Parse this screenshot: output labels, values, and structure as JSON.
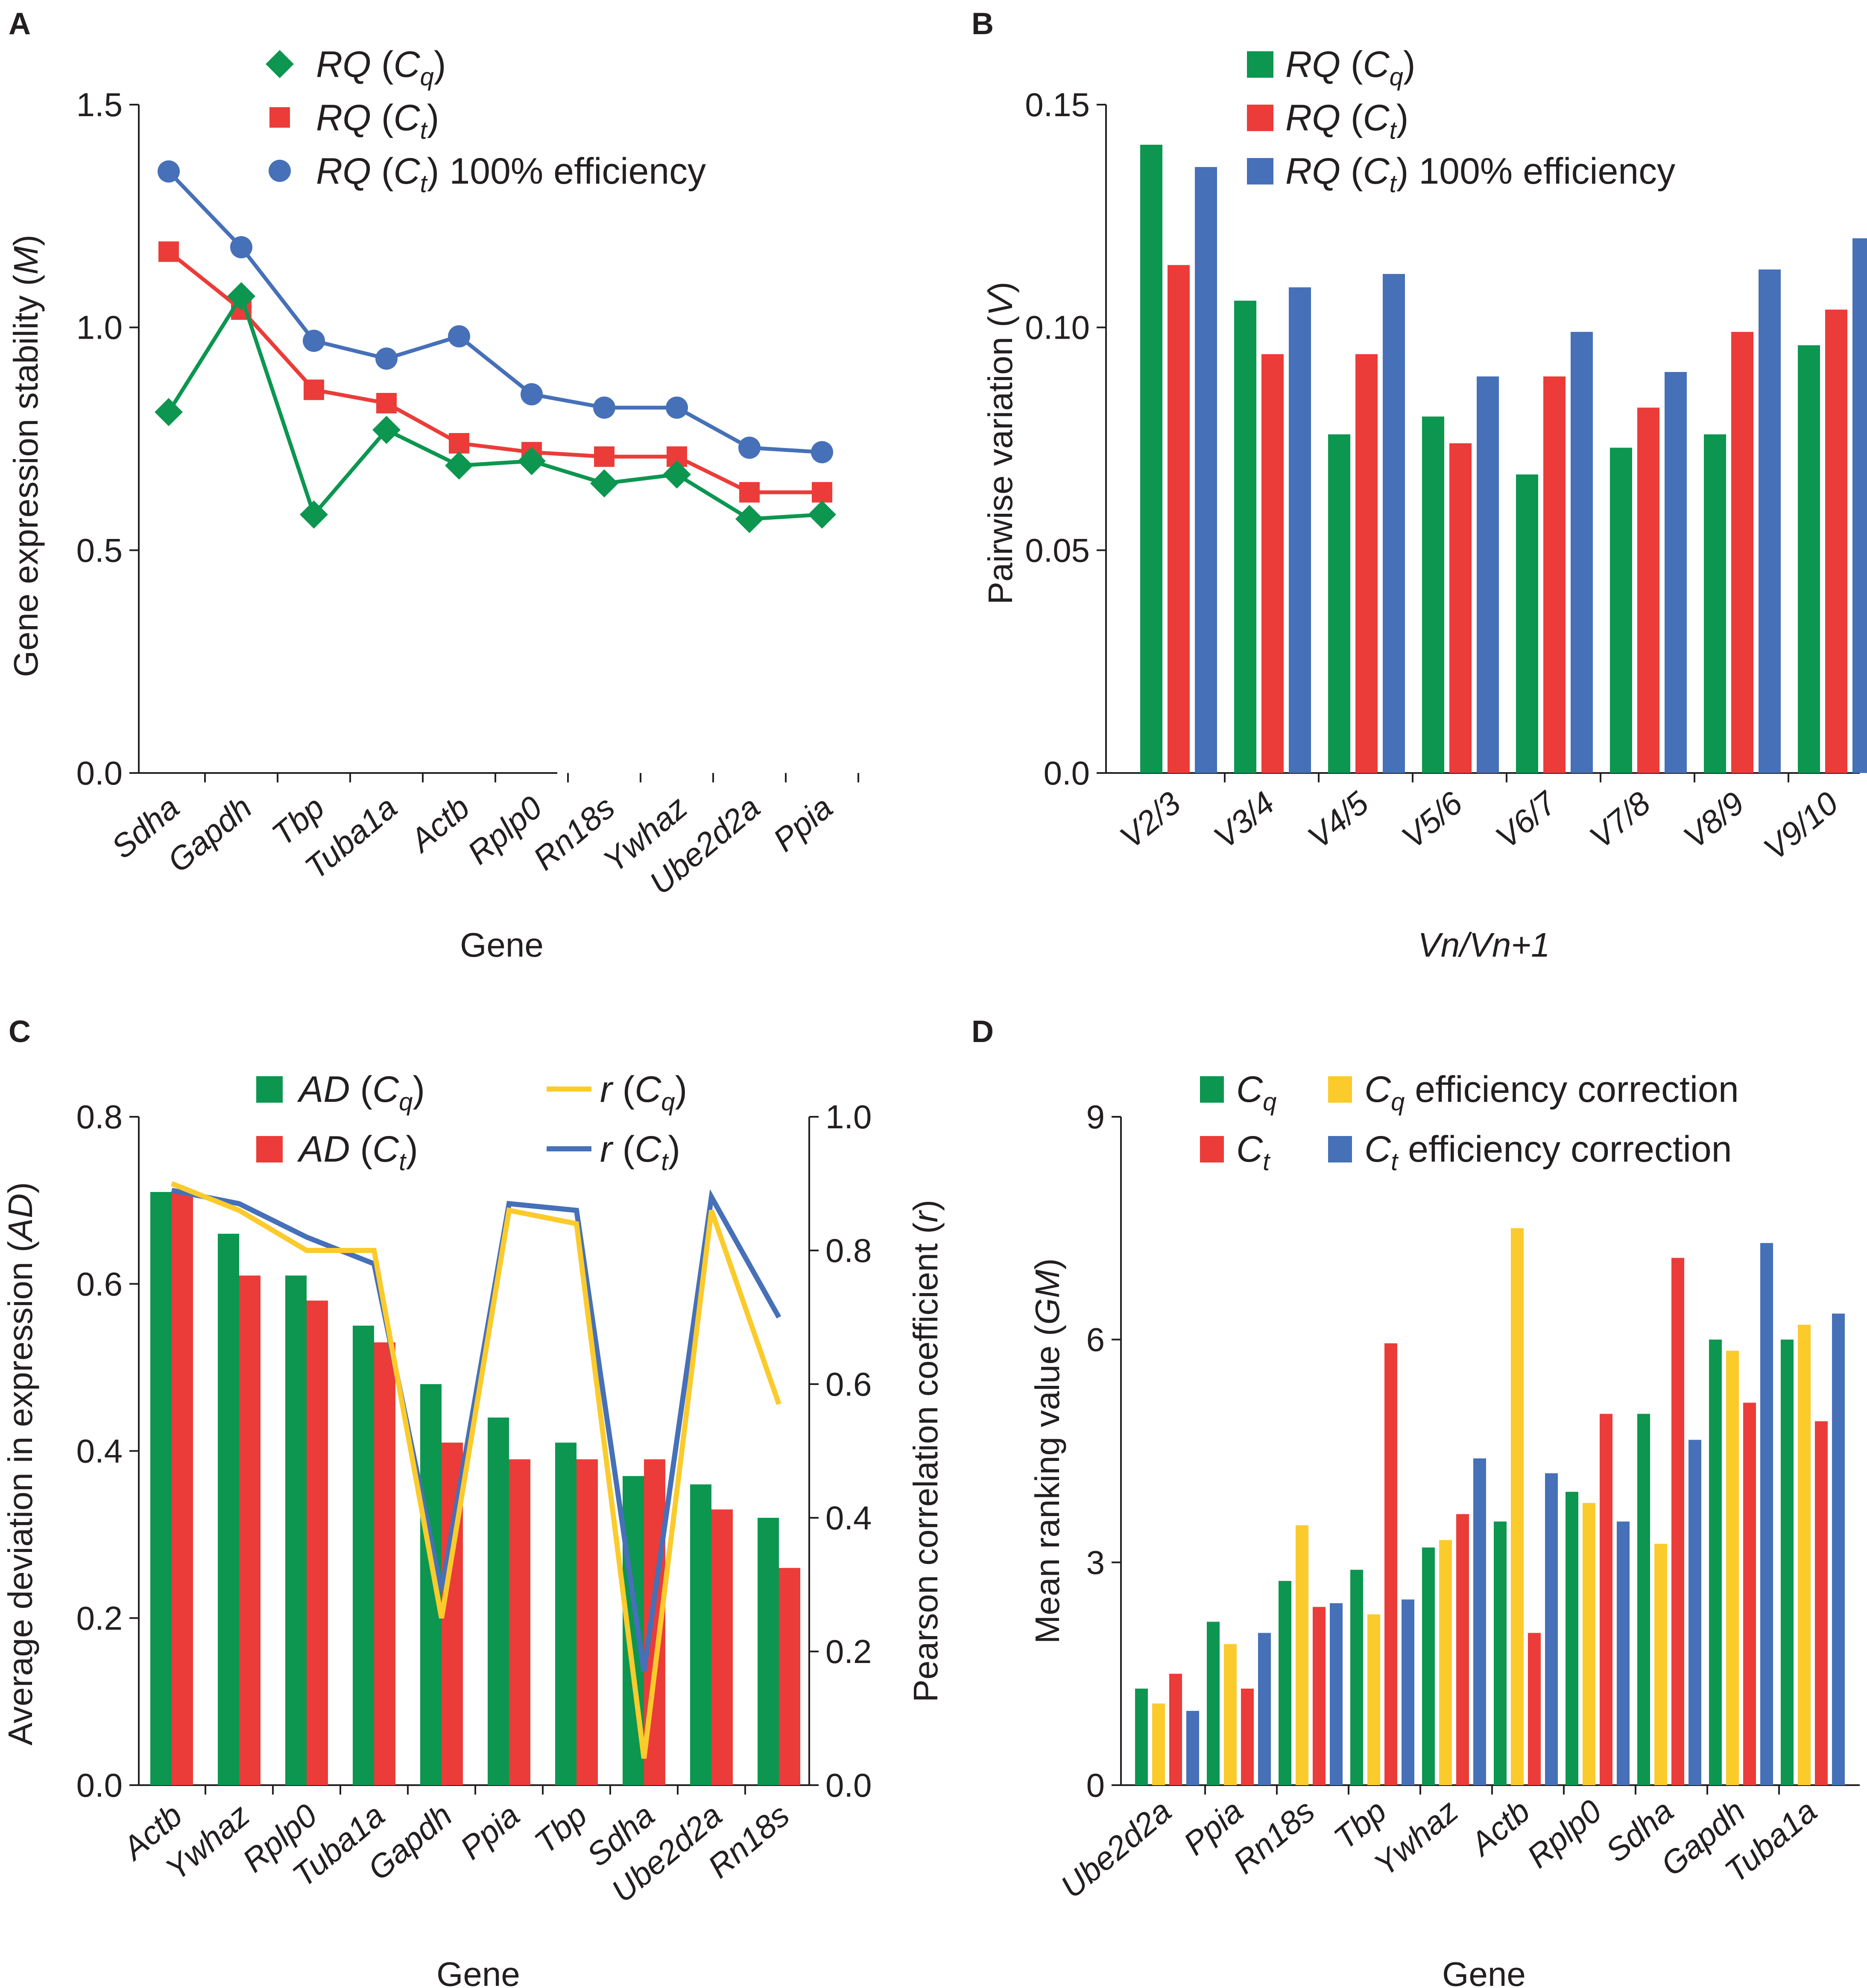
{
  "colors": {
    "green": "#0c9650",
    "red": "#eb3c39",
    "blue": "#4670b8",
    "yellow": "#fbcb2c",
    "axis": "#231f20"
  },
  "panel_labels": [
    "A",
    "B",
    "C",
    "D"
  ],
  "chart_data": [
    {
      "panel": "A",
      "type": "line",
      "xlabel": "Gene",
      "ylabel": "Gene expression stability (M)",
      "ylabel_main": "Gene expression stability (",
      "ylabel_var": "M",
      "ylabel_close": ")",
      "ylim": [
        0,
        1.5
      ],
      "yticks": [
        "0.0",
        "0.5",
        "1.0",
        "1.5"
      ],
      "categories": [
        "Sdha",
        "Gapdh",
        "Tbp",
        "Tuba1a",
        "Actb",
        "Rplp0",
        "Rn18s",
        "Ywhaz",
        "Ube2d2a",
        "Ppia"
      ],
      "legend": [
        {
          "prefix": "RQ",
          "open": " (",
          "var": "C",
          "sub": "q",
          "close": ")",
          "suffix": ""
        },
        {
          "prefix": "RQ",
          "open": " (",
          "var": "C",
          "sub": "t",
          "close": ")",
          "suffix": ""
        },
        {
          "prefix": "RQ",
          "open": " (",
          "var": "C",
          "sub": "t",
          "close": ")",
          "suffix": " 100% efficiency"
        }
      ],
      "series": [
        {
          "name": "RQ (Cq)",
          "color": "green",
          "marker": "diamond",
          "values": [
            0.81,
            1.07,
            0.58,
            0.77,
            0.69,
            0.7,
            0.65,
            0.67,
            0.57,
            0.58
          ]
        },
        {
          "name": "RQ (Ct)",
          "color": "red",
          "marker": "square",
          "values": [
            1.17,
            1.04,
            0.86,
            0.83,
            0.74,
            0.72,
            0.71,
            0.71,
            0.63,
            0.63
          ]
        },
        {
          "name": "RQ (Ct) 100% efficiency",
          "color": "blue",
          "marker": "circle",
          "values": [
            1.35,
            1.18,
            0.97,
            0.93,
            0.98,
            0.85,
            0.82,
            0.82,
            0.73,
            0.72
          ]
        }
      ]
    },
    {
      "panel": "B",
      "type": "bar",
      "xlabel": "Vn/Vn+1",
      "ylabel": "Pairwise variation (V)",
      "ylabel_main": "Pairwise variation (",
      "ylabel_var": "V",
      "ylabel_close": ")",
      "ylim": [
        0,
        0.15
      ],
      "yticks": [
        "0.0",
        "0.05",
        "0.10",
        "0.15"
      ],
      "categories": [
        "V2/3",
        "V3/4",
        "V4/5",
        "V5/6",
        "V6/7",
        "V7/8",
        "V8/9",
        "V9/10"
      ],
      "legend": [
        {
          "prefix": "RQ",
          "open": " (",
          "var": "C",
          "sub": "q",
          "close": ")",
          "suffix": ""
        },
        {
          "prefix": "RQ",
          "open": " (",
          "var": "C",
          "sub": "t",
          "close": ")",
          "suffix": ""
        },
        {
          "prefix": "RQ",
          "open": " (",
          "var": "C",
          "sub": "t",
          "close": ")",
          "suffix": " 100% efficiency"
        }
      ],
      "series": [
        {
          "name": "RQ (Cq)",
          "color": "green",
          "values": [
            0.141,
            0.106,
            0.076,
            0.08,
            0.067,
            0.073,
            0.076,
            0.096
          ]
        },
        {
          "name": "RQ (Ct)",
          "color": "red",
          "values": [
            0.114,
            0.094,
            0.094,
            0.074,
            0.089,
            0.082,
            0.099,
            0.104
          ]
        },
        {
          "name": "RQ (Ct) 100% efficiency",
          "color": "blue",
          "values": [
            0.136,
            0.109,
            0.112,
            0.089,
            0.099,
            0.09,
            0.113,
            0.12
          ]
        }
      ]
    },
    {
      "panel": "C",
      "type": "bar",
      "xlabel": "Gene",
      "ylabel": "Average deviation in expression (AD)",
      "ylabel_main": "Average deviation in expression (",
      "ylabel_var": "AD",
      "ylabel_close": ")",
      "ylabel_right": "Pearson correlation coefficient (r)",
      "ylabel_right_main": "Pearson correlation coefficient (",
      "ylabel_right_var": "r",
      "ylabel_right_close": ")",
      "ylim": [
        0,
        0.8
      ],
      "ylim_right": [
        0,
        1.0
      ],
      "yticks": [
        "0.0",
        "0.2",
        "0.4",
        "0.6",
        "0.8"
      ],
      "yticks_right": [
        "0.0",
        "0.2",
        "0.4",
        "0.6",
        "0.8",
        "1.0"
      ],
      "categories": [
        "Actb",
        "Ywhaz",
        "Rplp0",
        "Tuba1a",
        "Gapdh",
        "Ppia",
        "Tbp",
        "Sdha",
        "Ube2d2a",
        "Rn18s"
      ],
      "legend": [
        {
          "prefix": "AD",
          "open": " (",
          "var": "C",
          "sub": "q",
          "close": ")",
          "suffix": ""
        },
        {
          "prefix": "AD",
          "open": " (",
          "var": "C",
          "sub": "t",
          "close": ")",
          "suffix": ""
        },
        {
          "prefix": "r",
          "open": " (",
          "var": "C",
          "sub": "q",
          "close": ")",
          "suffix": ""
        },
        {
          "prefix": "r",
          "open": " (",
          "var": "C",
          "sub": "t",
          "close": ")",
          "suffix": ""
        }
      ],
      "series": [
        {
          "name": "AD (Cq)",
          "color": "green",
          "kind": "bar",
          "values": [
            0.71,
            0.66,
            0.61,
            0.55,
            0.48,
            0.44,
            0.41,
            0.37,
            0.36,
            0.32
          ]
        },
        {
          "name": "AD (Ct)",
          "color": "red",
          "kind": "bar",
          "values": [
            0.71,
            0.61,
            0.58,
            0.53,
            0.41,
            0.39,
            0.39,
            0.39,
            0.33,
            0.26
          ]
        },
        {
          "name": "r (Cq)",
          "color": "yellow",
          "kind": "line",
          "axis": "right",
          "values": [
            0.9,
            0.86,
            0.8,
            0.8,
            0.25,
            0.86,
            0.84,
            0.04,
            0.86,
            0.57
          ]
        },
        {
          "name": "r (Ct)",
          "color": "blue",
          "kind": "line",
          "axis": "right",
          "values": [
            0.89,
            0.87,
            0.82,
            0.78,
            0.29,
            0.87,
            0.86,
            0.17,
            0.88,
            0.7
          ]
        }
      ]
    },
    {
      "panel": "D",
      "type": "bar",
      "xlabel": "Gene",
      "ylabel": "Mean ranking value (GM)",
      "ylabel_main": "Mean ranking value (",
      "ylabel_var": "GM",
      "ylabel_close": ")",
      "ylim": [
        0,
        9
      ],
      "yticks": [
        "0",
        "3",
        "6",
        "9"
      ],
      "categories": [
        "Ube2d2a",
        "Ppia",
        "Rn18s",
        "Tbp",
        "Ywhaz",
        "Actb",
        "Rplp0",
        "Sdha",
        "Gapdh",
        "Tuba1a"
      ],
      "legend": [
        {
          "prefix": "",
          "open": "",
          "var": "C",
          "sub": "q",
          "close": "",
          "suffix": ""
        },
        {
          "prefix": "",
          "open": "",
          "var": "C",
          "sub": "t",
          "close": "",
          "suffix": ""
        },
        {
          "prefix": "",
          "open": "",
          "var": "C",
          "sub": "q",
          "close": "",
          "suffix": " efficiency correction"
        },
        {
          "prefix": "",
          "open": "",
          "var": "C",
          "sub": "t",
          "close": "",
          "suffix": " efficiency correction"
        }
      ],
      "series": [
        {
          "name": "Cq",
          "color": "green",
          "values": [
            1.3,
            2.2,
            2.75,
            2.9,
            3.2,
            3.55,
            3.95,
            5.0,
            6.0,
            6.0
          ]
        },
        {
          "name": "Cq efficiency correction",
          "color": "yellow",
          "values": [
            1.1,
            1.9,
            3.5,
            2.3,
            3.3,
            7.5,
            3.8,
            3.25,
            5.85,
            6.2
          ]
        },
        {
          "name": "Ct",
          "color": "red",
          "values": [
            1.5,
            1.3,
            2.4,
            5.95,
            3.65,
            2.05,
            5.0,
            7.1,
            5.15,
            4.9
          ]
        },
        {
          "name": "Ct efficiency correction",
          "color": "blue",
          "values": [
            1.0,
            2.05,
            2.45,
            2.5,
            4.4,
            4.2,
            3.55,
            4.65,
            7.3,
            6.35
          ]
        }
      ]
    }
  ]
}
